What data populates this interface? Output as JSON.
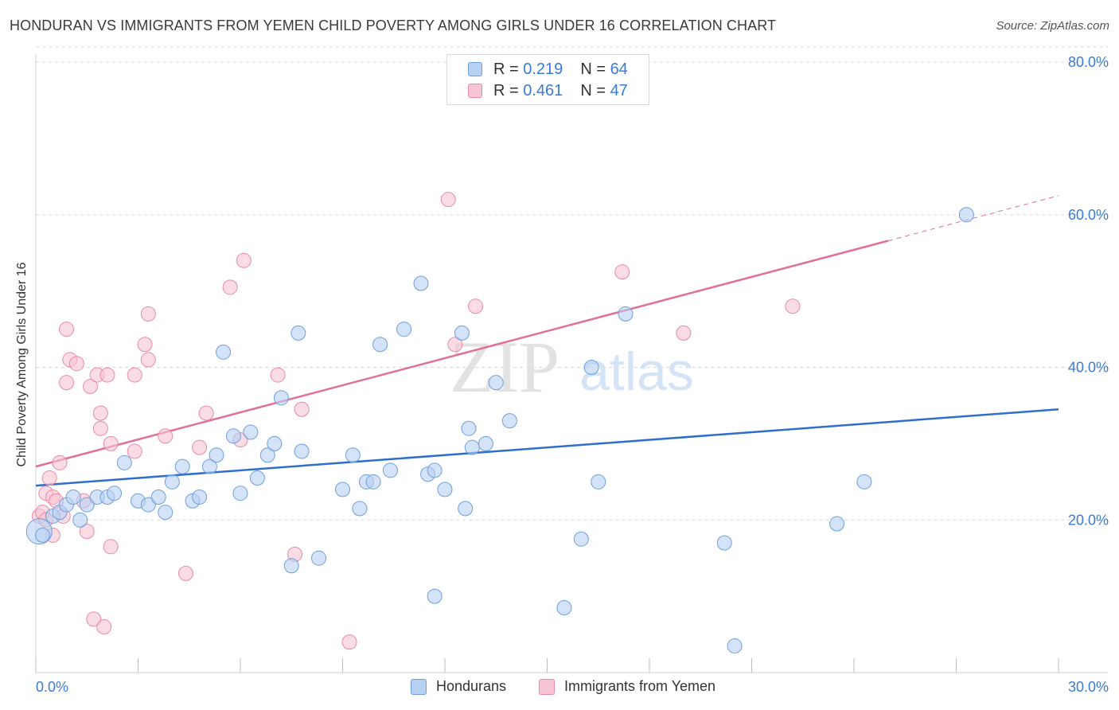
{
  "header": {
    "title": "HONDURAN VS IMMIGRANTS FROM YEMEN CHILD POVERTY AMONG GIRLS UNDER 16 CORRELATION CHART",
    "source": "Source: ZipAtlas.com"
  },
  "legend_top": {
    "rows": [
      {
        "r_label": "R =",
        "r_value": "0.219",
        "n_label": "N =",
        "n_value": "64"
      },
      {
        "r_label": "R =",
        "r_value": "0.461",
        "n_label": "N =",
        "n_value": "47"
      }
    ]
  },
  "legend_bottom": {
    "items": [
      "Hondurans",
      "Immigrants from Yemen"
    ]
  },
  "watermark": {
    "zip": "ZIP",
    "atlas": "atlas"
  },
  "colors": {
    "hondurans_fill": "#b7d1f2",
    "hondurans_stroke": "#6e9fdc",
    "hondurans_line": "#2f6fcc",
    "yemen_fill": "#f7c5d3",
    "yemen_stroke": "#e88aa6",
    "yemen_line": "#e07098",
    "tick_text": "#3a7bd5",
    "grid": "#d8d8d8"
  },
  "chart_data": {
    "type": "scatter",
    "title": "HONDURAN VS IMMIGRANTS FROM YEMEN CHILD POVERTY AMONG GIRLS UNDER 16 CORRELATION CHART",
    "xlabel": "",
    "ylabel": "Child Poverty Among Girls Under 16",
    "xlim": [
      0,
      30
    ],
    "ylim": [
      0,
      80
    ],
    "x_tick_labels": [
      "0.0%",
      "30.0%"
    ],
    "y_ticks": [
      20,
      40,
      60,
      80
    ],
    "y_tick_labels": [
      "20.0%",
      "40.0%",
      "60.0%",
      "80.0%"
    ],
    "grid": true,
    "legend_position": "top-center",
    "series": [
      {
        "name": "Hondurans",
        "r": 0.219,
        "n": 64,
        "trend": {
          "x": [
            0,
            30
          ],
          "y": [
            24.5,
            34.5
          ]
        },
        "points": [
          [
            0.1,
            18.5
          ],
          [
            0.2,
            18.0
          ],
          [
            0.5,
            20.5
          ],
          [
            0.7,
            21.0
          ],
          [
            0.9,
            22.0
          ],
          [
            1.1,
            23.0
          ],
          [
            1.3,
            20.0
          ],
          [
            1.5,
            22.0
          ],
          [
            1.8,
            23.0
          ],
          [
            2.1,
            23.0
          ],
          [
            2.3,
            23.5
          ],
          [
            2.6,
            27.5
          ],
          [
            3.0,
            22.5
          ],
          [
            3.3,
            22.0
          ],
          [
            3.6,
            23.0
          ],
          [
            3.8,
            21.0
          ],
          [
            4.0,
            25.0
          ],
          [
            4.3,
            27.0
          ],
          [
            4.6,
            22.5
          ],
          [
            4.8,
            23.0
          ],
          [
            5.1,
            27.0
          ],
          [
            5.3,
            28.5
          ],
          [
            5.5,
            42.0
          ],
          [
            5.8,
            31.0
          ],
          [
            6.0,
            23.5
          ],
          [
            6.3,
            31.5
          ],
          [
            6.5,
            25.5
          ],
          [
            6.8,
            28.5
          ],
          [
            7.0,
            30.0
          ],
          [
            7.2,
            36.0
          ],
          [
            7.5,
            14.0
          ],
          [
            7.7,
            44.5
          ],
          [
            7.8,
            29.0
          ],
          [
            8.3,
            15.0
          ],
          [
            9.0,
            24.0
          ],
          [
            9.3,
            28.5
          ],
          [
            9.5,
            21.5
          ],
          [
            9.7,
            25.0
          ],
          [
            9.9,
            25.0
          ],
          [
            10.1,
            43.0
          ],
          [
            10.4,
            26.5
          ],
          [
            10.8,
            45.0
          ],
          [
            11.3,
            51.0
          ],
          [
            11.5,
            26.0
          ],
          [
            11.7,
            26.5
          ],
          [
            11.7,
            10.0
          ],
          [
            12.0,
            24.0
          ],
          [
            12.5,
            44.5
          ],
          [
            12.6,
            21.5
          ],
          [
            12.7,
            32.0
          ],
          [
            12.8,
            29.5
          ],
          [
            13.2,
            30.0
          ],
          [
            13.5,
            38.0
          ],
          [
            13.9,
            33.0
          ],
          [
            15.5,
            8.5
          ],
          [
            16.0,
            17.5
          ],
          [
            16.3,
            40.0
          ],
          [
            16.5,
            25.0
          ],
          [
            17.3,
            47.0
          ],
          [
            20.2,
            17.0
          ],
          [
            20.5,
            3.5
          ],
          [
            23.5,
            19.5
          ],
          [
            24.3,
            25.0
          ],
          [
            27.3,
            60.0
          ]
        ]
      },
      {
        "name": "Immigrants from Yemen",
        "r": 0.461,
        "n": 47,
        "trend": {
          "x": [
            0,
            30
          ],
          "y": [
            27.0,
            62.5
          ]
        },
        "points": [
          [
            0.1,
            20.5
          ],
          [
            0.2,
            21.0
          ],
          [
            0.3,
            23.5
          ],
          [
            0.4,
            25.5
          ],
          [
            0.5,
            18.0
          ],
          [
            0.5,
            23.0
          ],
          [
            0.7,
            27.5
          ],
          [
            0.8,
            20.5
          ],
          [
            0.9,
            45.0
          ],
          [
            0.9,
            38.0
          ],
          [
            1.0,
            41.0
          ],
          [
            1.2,
            40.5
          ],
          [
            1.4,
            22.5
          ],
          [
            1.5,
            18.5
          ],
          [
            1.6,
            37.5
          ],
          [
            1.7,
            7.0
          ],
          [
            1.8,
            39.0
          ],
          [
            1.9,
            34.0
          ],
          [
            1.9,
            32.0
          ],
          [
            2.0,
            6.0
          ],
          [
            2.1,
            39.0
          ],
          [
            2.2,
            16.5
          ],
          [
            2.2,
            30.0
          ],
          [
            2.9,
            39.0
          ],
          [
            2.9,
            29.0
          ],
          [
            3.2,
            43.0
          ],
          [
            3.3,
            41.0
          ],
          [
            3.3,
            47.0
          ],
          [
            3.8,
            31.0
          ],
          [
            4.4,
            13.0
          ],
          [
            4.8,
            29.5
          ],
          [
            5.0,
            34.0
          ],
          [
            5.7,
            50.5
          ],
          [
            6.0,
            30.5
          ],
          [
            6.1,
            54.0
          ],
          [
            7.1,
            39.0
          ],
          [
            7.6,
            15.5
          ],
          [
            7.8,
            34.5
          ],
          [
            9.2,
            4.0
          ],
          [
            12.1,
            62.0
          ],
          [
            12.3,
            43.0
          ],
          [
            12.9,
            48.0
          ],
          [
            17.2,
            52.5
          ],
          [
            19.0,
            44.5
          ],
          [
            22.2,
            48.0
          ],
          [
            0.3,
            20.0
          ],
          [
            0.6,
            22.5
          ]
        ]
      }
    ]
  }
}
